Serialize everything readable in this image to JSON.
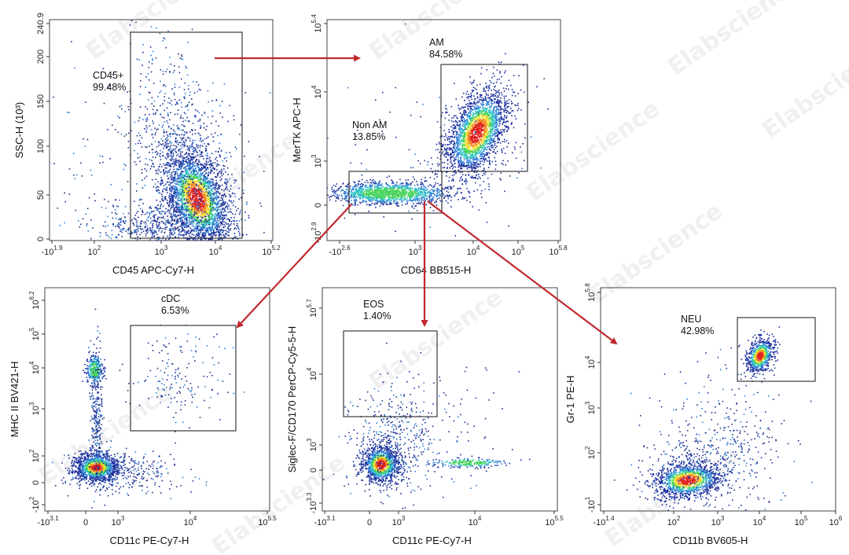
{
  "watermark_text": "Elabscience",
  "arrow_color": "#c0282e",
  "density_colors": [
    "#1a2f9e",
    "#2f7fd6",
    "#30c4c4",
    "#47d35a",
    "#f0e030",
    "#f08a20",
    "#e02020"
  ],
  "chart_data": [
    {
      "id": "p1",
      "type": "scatter",
      "xlabel": "CD45 APC-Cy7-H",
      "ylabel": "SSC-H (10³)",
      "x_scale": "log",
      "y_scale": "linear",
      "ylim": [
        0,
        240.9
      ],
      "x_ticks": [
        {
          "label": "-10",
          "exp": "1.9"
        },
        {
          "label": "10",
          "exp": "2"
        },
        {
          "label": "10",
          "exp": "3"
        },
        {
          "label": "10",
          "exp": "4"
        },
        {
          "label": "10",
          "exp": "5.2"
        }
      ],
      "y_ticks": [
        {
          "label": "0"
        },
        {
          "label": "50"
        },
        {
          "label": "100"
        },
        {
          "label": "150"
        },
        {
          "label": "200"
        },
        {
          "label": "240.9"
        }
      ],
      "gates": [
        {
          "name": "CD45+",
          "percent": "99.48%"
        }
      ]
    },
    {
      "id": "p2",
      "type": "scatter",
      "xlabel": "CD64 BB515-H",
      "ylabel": "MerTK APC-H",
      "x_scale": "log",
      "y_scale": "log",
      "x_ticks": [
        {
          "label": "-10",
          "exp": "2.6"
        },
        {
          "label": "10",
          "exp": "3"
        },
        {
          "label": "10",
          "exp": "4"
        },
        {
          "label": "10",
          "exp": "5"
        },
        {
          "label": "10",
          "exp": "5.8"
        }
      ],
      "y_ticks": [
        {
          "label": "-10",
          "exp": "2.9"
        },
        {
          "label": "0"
        },
        {
          "label": "10",
          "exp": "3"
        },
        {
          "label": "10",
          "exp": "4"
        },
        {
          "label": "10",
          "exp": "5.4"
        }
      ],
      "gates": [
        {
          "name": "AM",
          "percent": "84.58%"
        },
        {
          "name": "Non AM",
          "percent": "13.85%"
        }
      ]
    },
    {
      "id": "p3",
      "type": "scatter",
      "xlabel": "CD11c PE-Cy7-H",
      "ylabel": "MHC II BV421-H",
      "x_scale": "log",
      "y_scale": "log",
      "x_ticks": [
        {
          "label": "-10",
          "exp": "3.1"
        },
        {
          "label": "0"
        },
        {
          "label": "10",
          "exp": "3"
        },
        {
          "label": "10",
          "exp": "4"
        },
        {
          "label": "10",
          "exp": "5.5"
        }
      ],
      "y_ticks": [
        {
          "label": "-10",
          "exp": "2"
        },
        {
          "label": "0"
        },
        {
          "label": "10",
          "exp": "2"
        },
        {
          "label": "10",
          "exp": "3"
        },
        {
          "label": "10",
          "exp": "4"
        },
        {
          "label": "10",
          "exp": "5"
        },
        {
          "label": "10",
          "exp": "6.2"
        }
      ],
      "gates": [
        {
          "name": "cDC",
          "percent": "6.53%"
        }
      ]
    },
    {
      "id": "p4",
      "type": "scatter",
      "xlabel": "CD11c PE-Cy7-H",
      "ylabel": "Siglec-F/CD170 PerCP-Cy5-5-H",
      "x_scale": "log",
      "y_scale": "log",
      "x_ticks": [
        {
          "label": "-10",
          "exp": "3.1"
        },
        {
          "label": "0"
        },
        {
          "label": "10",
          "exp": "3"
        },
        {
          "label": "10",
          "exp": "4"
        },
        {
          "label": "10",
          "exp": "5.5"
        }
      ],
      "y_ticks": [
        {
          "label": "-10",
          "exp": "3.3"
        },
        {
          "label": "0"
        },
        {
          "label": "10",
          "exp": "3"
        },
        {
          "label": "10",
          "exp": "4"
        },
        {
          "label": "10",
          "exp": "5.7"
        }
      ],
      "gates": [
        {
          "name": "EOS",
          "percent": "1.40%"
        }
      ]
    },
    {
      "id": "p5",
      "type": "scatter",
      "xlabel": "CD11b BV605-H",
      "ylabel": "Gr-1 PE-H",
      "x_scale": "log",
      "y_scale": "log",
      "x_ticks": [
        {
          "label": "-10",
          "exp": "1.4"
        },
        {
          "label": "10",
          "exp": "2"
        },
        {
          "label": "10",
          "exp": "3"
        },
        {
          "label": "10",
          "exp": "4"
        },
        {
          "label": "10",
          "exp": "5"
        },
        {
          "label": "10",
          "exp": "6"
        }
      ],
      "y_ticks": [
        {
          "label": "-10",
          "exp": "1"
        },
        {
          "label": "10",
          "exp": "2"
        },
        {
          "label": "10",
          "exp": "3"
        },
        {
          "label": "10",
          "exp": "4"
        },
        {
          "label": "10",
          "exp": "5.8"
        }
      ],
      "gates": [
        {
          "name": "NEU",
          "percent": "42.98%"
        }
      ]
    }
  ]
}
